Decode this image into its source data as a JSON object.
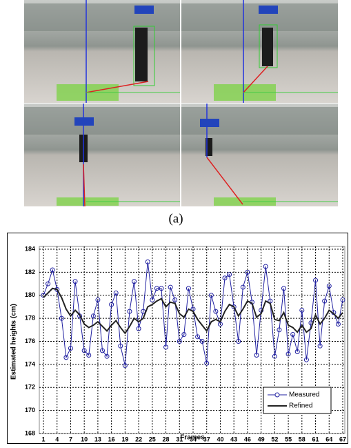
{
  "figure": {
    "panel_label": "(a)"
  },
  "chart_data": {
    "type": "line",
    "y_label": "Estimated heights (cm)",
    "x_label": "Frames",
    "x": [
      1,
      2,
      3,
      4,
      5,
      6,
      7,
      8,
      9,
      10,
      11,
      12,
      13,
      14,
      15,
      16,
      17,
      18,
      19,
      20,
      21,
      22,
      23,
      24,
      25,
      26,
      27,
      28,
      29,
      30,
      31,
      32,
      33,
      34,
      35,
      36,
      37,
      38,
      39,
      40,
      41,
      42,
      43,
      44,
      45,
      46,
      47,
      48,
      49,
      50,
      51,
      52,
      53,
      54,
      55,
      56,
      57,
      58,
      59,
      60,
      61,
      62,
      63,
      64,
      65,
      66,
      67
    ],
    "xlim": [
      1,
      67
    ],
    "xticks": [
      1,
      4,
      7,
      10,
      13,
      16,
      19,
      22,
      25,
      28,
      31,
      34,
      37,
      40,
      43,
      46,
      49,
      52,
      55,
      58,
      61,
      64,
      67
    ],
    "ylim": [
      168,
      184
    ],
    "yticks": [
      168,
      170,
      172,
      174,
      176,
      178,
      180,
      182,
      184
    ],
    "grid": true,
    "legend": "lower right",
    "series": [
      {
        "name": "Measured",
        "color": "#1f1fa0",
        "marker": "circle",
        "values": [
          180,
          181,
          182.2,
          180.5,
          178,
          174.6,
          175.4,
          181.2,
          178.2,
          175.2,
          174.8,
          178.2,
          179.6,
          175.2,
          174.7,
          179.2,
          180.2,
          175.6,
          173.9,
          178.6,
          181.2,
          177.1,
          178.6,
          182.9,
          179.6,
          180.6,
          180.6,
          175.5,
          180.7,
          179.6,
          176,
          176.6,
          180.6,
          178.8,
          176.4,
          176,
          174.1,
          180,
          178.6,
          177.5,
          181.5,
          181.8,
          179,
          176,
          180.7,
          182,
          179.4,
          174.8,
          178.7,
          182.5,
          179.5,
          174.7,
          177,
          180.6,
          174.9,
          176.6,
          175.1,
          178.7,
          174.4,
          177.6,
          181.3,
          175.6,
          179.5,
          180.8,
          178.5,
          177.5,
          179.6
        ]
      },
      {
        "name": "Refined",
        "color": "#222222",
        "marker": "none",
        "values": [
          179.8,
          180.2,
          180.6,
          180.5,
          179.8,
          178.8,
          178.2,
          178.7,
          178.3,
          177.5,
          177.2,
          177.4,
          177.7,
          177.3,
          176.9,
          177.4,
          177.8,
          177.2,
          176.7,
          177.3,
          178,
          177.7,
          178,
          179,
          179.2,
          179.5,
          179.7,
          179,
          179.4,
          179.3,
          178.4,
          178.1,
          178.8,
          178.6,
          177.9,
          177.4,
          176.9,
          177.7,
          177.9,
          177.7,
          178.6,
          179.2,
          179,
          178.2,
          178.8,
          179.5,
          179.3,
          178.1,
          178.4,
          179.5,
          179.3,
          177.9,
          177.8,
          178.5,
          177.4,
          177.2,
          176.8,
          177.4,
          176.8,
          177.1,
          178.3,
          177.5,
          178,
          178.7,
          178.4,
          178,
          178.5
        ]
      }
    ]
  }
}
